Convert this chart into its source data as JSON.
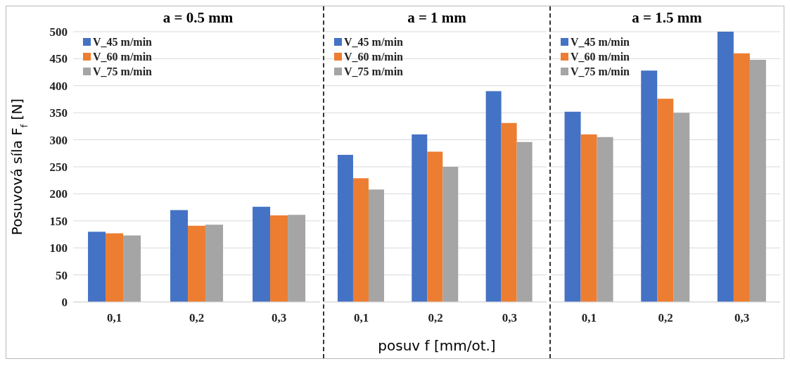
{
  "chart_data": [
    {
      "type": "bar",
      "title": "a = 0.5 mm",
      "ylabel": "Posuvová síla F$_{f}$ [N]",
      "categories": [
        "0,1",
        "0,2",
        "0,3"
      ],
      "series": [
        {
          "name": "V_45 m/min",
          "color": "#4472c4",
          "values": [
            130,
            170,
            176
          ]
        },
        {
          "name": "V_60 m/min",
          "color": "#ed7d31",
          "values": [
            127,
            141,
            160
          ]
        },
        {
          "name": "V_75 m/min",
          "color": "#a5a5a5",
          "values": [
            123,
            143,
            161
          ]
        }
      ],
      "ylim": [
        0,
        500
      ],
      "yticks": [
        0,
        50,
        100,
        150,
        200,
        250,
        300,
        350,
        400,
        450,
        500
      ],
      "grid": "y",
      "legend": "top left"
    },
    {
      "type": "bar",
      "title": "a = 1 mm",
      "xlabel": "posuv f [mm/ot.]",
      "categories": [
        "0,1",
        "0,2",
        "0,3"
      ],
      "series": [
        {
          "name": "V_45 m/min",
          "color": "#4472c4",
          "values": [
            272,
            310,
            390
          ]
        },
        {
          "name": "V_60 m/min",
          "color": "#ed7d31",
          "values": [
            229,
            278,
            331
          ]
        },
        {
          "name": "V_75 m/min",
          "color": "#a5a5a5",
          "values": [
            208,
            250,
            296
          ]
        }
      ],
      "ylim": [
        0,
        500
      ],
      "yticks": [
        0,
        50,
        100,
        150,
        200,
        250,
        300,
        350,
        400,
        450,
        500
      ],
      "grid": "y",
      "legend": "top left",
      "tick_labels": "x"
    },
    {
      "type": "bar",
      "title": "a = 1.5 mm",
      "categories": [
        "0,1",
        "0,2",
        "0,3"
      ],
      "series": [
        {
          "name": "V_45 m/min",
          "color": "#4472c4",
          "values": [
            352,
            428,
            500
          ]
        },
        {
          "name": "V_60 m/min",
          "color": "#ed7d31",
          "values": [
            310,
            376,
            460
          ]
        },
        {
          "name": "V_75 m/min",
          "color": "#a5a5a5",
          "values": [
            305,
            350,
            448
          ]
        }
      ],
      "ylim": [
        0,
        500
      ],
      "yticks": [
        0,
        50,
        100,
        150,
        200,
        250,
        300,
        350,
        400,
        450,
        500
      ],
      "grid": "y",
      "legend": "top left",
      "tick_labels": "x"
    }
  ]
}
